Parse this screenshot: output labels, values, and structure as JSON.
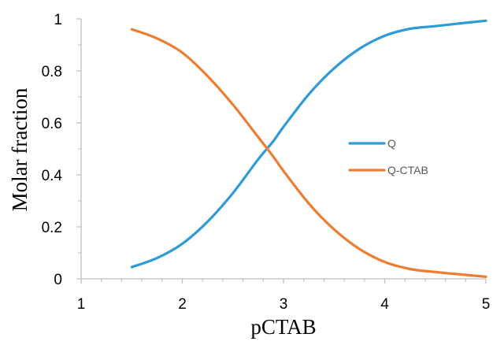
{
  "chart_data": {
    "type": "line",
    "xlabel": "pCTAB",
    "ylabel": "Molar fraction",
    "xlim": [
      1,
      5
    ],
    "ylim": [
      0,
      1
    ],
    "x_ticks": [
      1,
      2,
      3,
      4,
      5
    ],
    "y_ticks": [
      0,
      0.2,
      0.4,
      0.6,
      0.8,
      1
    ],
    "x_tick_labels": [
      "1",
      "2",
      "3",
      "4",
      "5"
    ],
    "y_tick_labels": [
      "0",
      "0.2",
      "0.4",
      "0.6",
      "0.8",
      "1"
    ],
    "grid": false,
    "legend_position": "right",
    "series": [
      {
        "name": "Q",
        "color": "#2e9bd6",
        "x": [
          1.5,
          1.75,
          2.0,
          2.25,
          2.5,
          2.75,
          2.9,
          3.0,
          3.25,
          3.5,
          3.75,
          4.0,
          4.25,
          4.5,
          4.75,
          5.0
        ],
        "y": [
          0.045,
          0.08,
          0.135,
          0.22,
          0.33,
          0.46,
          0.53,
          0.585,
          0.71,
          0.81,
          0.885,
          0.935,
          0.962,
          0.972,
          0.983,
          0.993
        ]
      },
      {
        "name": "Q-CTAB",
        "color": "#ed7d31",
        "x": [
          1.5,
          1.75,
          2.0,
          2.25,
          2.5,
          2.75,
          2.9,
          3.0,
          3.25,
          3.5,
          3.75,
          4.0,
          4.25,
          4.5,
          4.75,
          5.0
        ],
        "y": [
          0.96,
          0.925,
          0.87,
          0.78,
          0.67,
          0.545,
          0.47,
          0.415,
          0.29,
          0.19,
          0.115,
          0.065,
          0.038,
          0.026,
          0.017,
          0.008
        ]
      }
    ]
  }
}
